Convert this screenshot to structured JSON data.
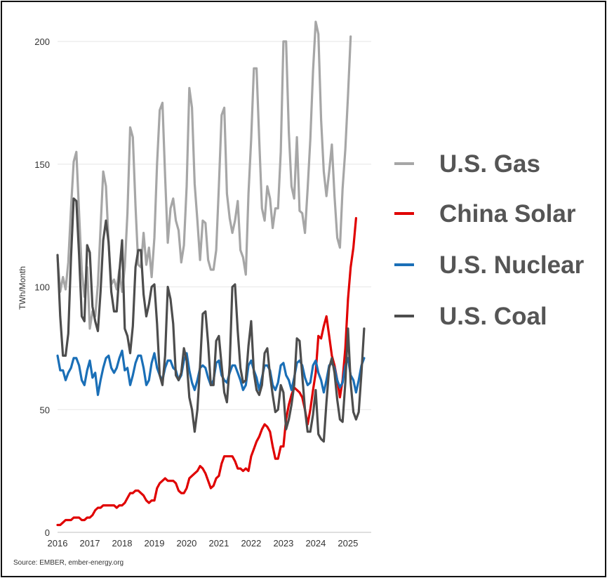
{
  "chart_data": {
    "type": "line",
    "title": "",
    "xlabel": "",
    "ylabel": "TWh/Month",
    "ylim": [
      0,
      210
    ],
    "yticks": [
      0,
      50,
      100,
      150,
      200
    ],
    "xlim": [
      2016,
      2025.6
    ],
    "xticks": [
      "2016",
      "2017",
      "2018",
      "2019",
      "2020",
      "2021",
      "2022",
      "2023",
      "2024",
      "2025"
    ],
    "grid": true,
    "legend_position": "right",
    "source": "Source: EMBER, ember-energy.org",
    "series": [
      {
        "name": "U.S. Gas",
        "color": "#a6a6a6",
        "start": 2016,
        "values": [
          112,
          98,
          104,
          99,
          110,
          132,
          151,
          155,
          130,
          107,
          96,
          108,
          83,
          90,
          88,
          101,
          124,
          147,
          141,
          118,
          101,
          103,
          99,
          107,
          98,
          108,
          130,
          165,
          161,
          133,
          109,
          108,
          122,
          109,
          116,
          104,
          120,
          150,
          172,
          175,
          145,
          118,
          132,
          136,
          127,
          123,
          110,
          117,
          141,
          181,
          173,
          142,
          127,
          111,
          127,
          126,
          111,
          107,
          107,
          115,
          141,
          170,
          173,
          138,
          128,
          122,
          127,
          135,
          115,
          112,
          105,
          138,
          160,
          189,
          189,
          160,
          132,
          127,
          141,
          136,
          124,
          132,
          132,
          155,
          200,
          200,
          163,
          141,
          136,
          161,
          131,
          130,
          122,
          140,
          160,
          188,
          208,
          203,
          168,
          147,
          137,
          147,
          158,
          137,
          120,
          116,
          140,
          156,
          178,
          202
        ]
      },
      {
        "name": "China Solar",
        "color": "#e00000",
        "start": 2016,
        "values": [
          3,
          3,
          4,
          5,
          5,
          5,
          6,
          6,
          6,
          5,
          5,
          6,
          6,
          7,
          9,
          10,
          10,
          11,
          11,
          11,
          11,
          11,
          10,
          11,
          11,
          12,
          14,
          16,
          16,
          17,
          17,
          16,
          15,
          13,
          12,
          13,
          13,
          18,
          20,
          21,
          22,
          21,
          21,
          21,
          20,
          17,
          16,
          16,
          18,
          22,
          23,
          24,
          25,
          27,
          26,
          24,
          21,
          18,
          19,
          22,
          23,
          28,
          31,
          31,
          31,
          31,
          29,
          26,
          26,
          25,
          26,
          25,
          31,
          34,
          37,
          39,
          42,
          44,
          43,
          41,
          35,
          30,
          30,
          35,
          35,
          46,
          52,
          56,
          59,
          58,
          57,
          55,
          50,
          44,
          50,
          58,
          65,
          80,
          79,
          84,
          88,
          80,
          72,
          68,
          62,
          55,
          62,
          75,
          95,
          108,
          116,
          128
        ]
      },
      {
        "name": "U.S. Nuclear",
        "color": "#1a6fb7",
        "start": 2016,
        "values": [
          72,
          66,
          66,
          62,
          65,
          67,
          71,
          71,
          68,
          62,
          60,
          66,
          70,
          63,
          65,
          56,
          62,
          67,
          71,
          72,
          67,
          65,
          67,
          71,
          74,
          66,
          67,
          60,
          64,
          69,
          72,
          72,
          67,
          60,
          62,
          69,
          73,
          67,
          64,
          62,
          67,
          70,
          70,
          67,
          66,
          62,
          64,
          70,
          73,
          66,
          61,
          58,
          62,
          67,
          68,
          67,
          63,
          60,
          62,
          69,
          70,
          64,
          62,
          61,
          65,
          68,
          68,
          65,
          62,
          58,
          60,
          68,
          70,
          66,
          63,
          58,
          63,
          68,
          68,
          66,
          60,
          58,
          61,
          68,
          69,
          64,
          62,
          58,
          63,
          69,
          70,
          68,
          63,
          60,
          61,
          68,
          70,
          65,
          62,
          57,
          62,
          68,
          69,
          67,
          62,
          59,
          61,
          68,
          71,
          64,
          62,
          57,
          62,
          68,
          71
        ]
      },
      {
        "name": "U.S. Coal",
        "color": "#4d4d4d",
        "start": 2016,
        "values": [
          113,
          88,
          72,
          72,
          81,
          112,
          136,
          135,
          113,
          88,
          86,
          117,
          114,
          92,
          86,
          82,
          98,
          119,
          127,
          118,
          98,
          90,
          90,
          106,
          119,
          83,
          80,
          73,
          84,
          108,
          115,
          115,
          97,
          88,
          93,
          100,
          101,
          85,
          64,
          60,
          72,
          100,
          95,
          85,
          64,
          62,
          65,
          75,
          70,
          55,
          50,
          41,
          50,
          68,
          89,
          90,
          77,
          60,
          60,
          78,
          80,
          68,
          57,
          53,
          68,
          100,
          101,
          82,
          67,
          61,
          62,
          76,
          86,
          65,
          58,
          56,
          60,
          73,
          75,
          64,
          56,
          49,
          50,
          60,
          57,
          42,
          46,
          52,
          60,
          79,
          78,
          64,
          50,
          41,
          41,
          48,
          58,
          40,
          38,
          37,
          53,
          67,
          71,
          65,
          54,
          46,
          45,
          61,
          83,
          61,
          49,
          46,
          49,
          65,
          83
        ]
      }
    ]
  }
}
